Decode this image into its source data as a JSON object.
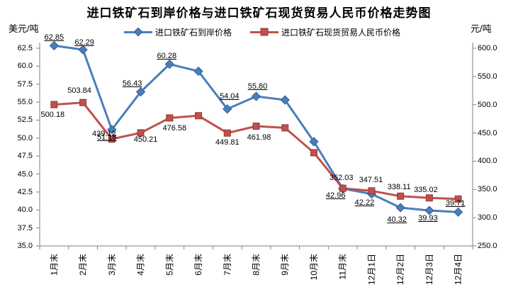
{
  "chart_data": {
    "type": "line",
    "title": "进口铁矿石到岸价格与进口铁矿石现货贸易人民币价格走势图",
    "legend_position": "top",
    "grid": false,
    "axis_color": "#808080",
    "label_color": "#000000",
    "left_axis": {
      "unit": "美元/吨",
      "min": 35.0,
      "max": 62.5,
      "tick_labels": [
        "62.5",
        "60.0",
        "57.5",
        "55.0",
        "52.5",
        "50.0",
        "47.5",
        "45.0",
        "42.5",
        "40.0",
        "37.5",
        "35.0"
      ]
    },
    "right_axis": {
      "unit": "元/吨",
      "min": 250.0,
      "max": 600.0,
      "tick_labels": [
        "600.0",
        "550.0",
        "500.0",
        "450.0",
        "400.0",
        "350.0",
        "300.0",
        "250.0"
      ]
    },
    "categories": [
      "1月末",
      "2月末",
      "3月末",
      "4月末",
      "5月末",
      "6月末",
      "7月末",
      "8月末",
      "9月末",
      "10月末",
      "11月末",
      "12月1日",
      "12月2日",
      "12月3日",
      "12月4日"
    ],
    "series": [
      {
        "name": "进口铁矿石到岸价格",
        "axis": "left",
        "color": "#4a7ebb",
        "edge_color": "#35609a",
        "marker": "diamond",
        "labels_underlined": true,
        "values": [
          62.85,
          62.29,
          51.18,
          56.43,
          60.28,
          59.3,
          54.04,
          55.8,
          55.3,
          49.5,
          42.96,
          42.22,
          40.32,
          39.93,
          39.71
        ],
        "labels": [
          "62.85",
          "62.29",
          "51.18",
          "56.43",
          "60.28",
          null,
          "54.04",
          "55.80",
          null,
          null,
          "42.96",
          "42.22",
          "40.32",
          "39.93",
          "39.71"
        ],
        "label_offsets": [
          [
            0,
            -17
          ],
          [
            2,
            -16
          ],
          [
            -7,
            5
          ],
          [
            -12,
            -18
          ],
          [
            -4,
            -18
          ],
          null,
          [
            3,
            -24
          ],
          [
            2,
            -20
          ],
          null,
          null,
          [
            -10,
            4
          ],
          [
            -10,
            6
          ],
          [
            -5,
            11
          ],
          [
            -2,
            5
          ],
          [
            -4,
            -18
          ]
        ]
      },
      {
        "name": "进口铁矿石现货贸易人民币价格",
        "axis": "right",
        "color": "#c0504d",
        "edge_color": "#953735",
        "marker": "square",
        "labels_underlined": false,
        "values": [
          500.18,
          503.84,
          439.12,
          450.21,
          476.58,
          480.5,
          449.81,
          461.98,
          459.0,
          415.0,
          352.03,
          347.51,
          338.11,
          335.02,
          333.0
        ],
        "labels": [
          "500.18",
          "503.84",
          "439.12",
          "450.21",
          "476.58",
          null,
          "449.81",
          "461.98",
          null,
          null,
          "352.03",
          "347.51",
          "338.11",
          "335.02",
          null
        ],
        "label_offsets": [
          [
            -2,
            8
          ],
          [
            -5,
            -23
          ],
          [
            -11,
            -13
          ],
          [
            7,
            4
          ],
          [
            7,
            9
          ],
          null,
          [
            0,
            7
          ],
          [
            4,
            10
          ],
          null,
          null,
          [
            -2,
            -21
          ],
          [
            -1,
            -21
          ],
          [
            -2,
            -19
          ],
          [
            -5,
            -17
          ],
          null
        ]
      }
    ]
  }
}
